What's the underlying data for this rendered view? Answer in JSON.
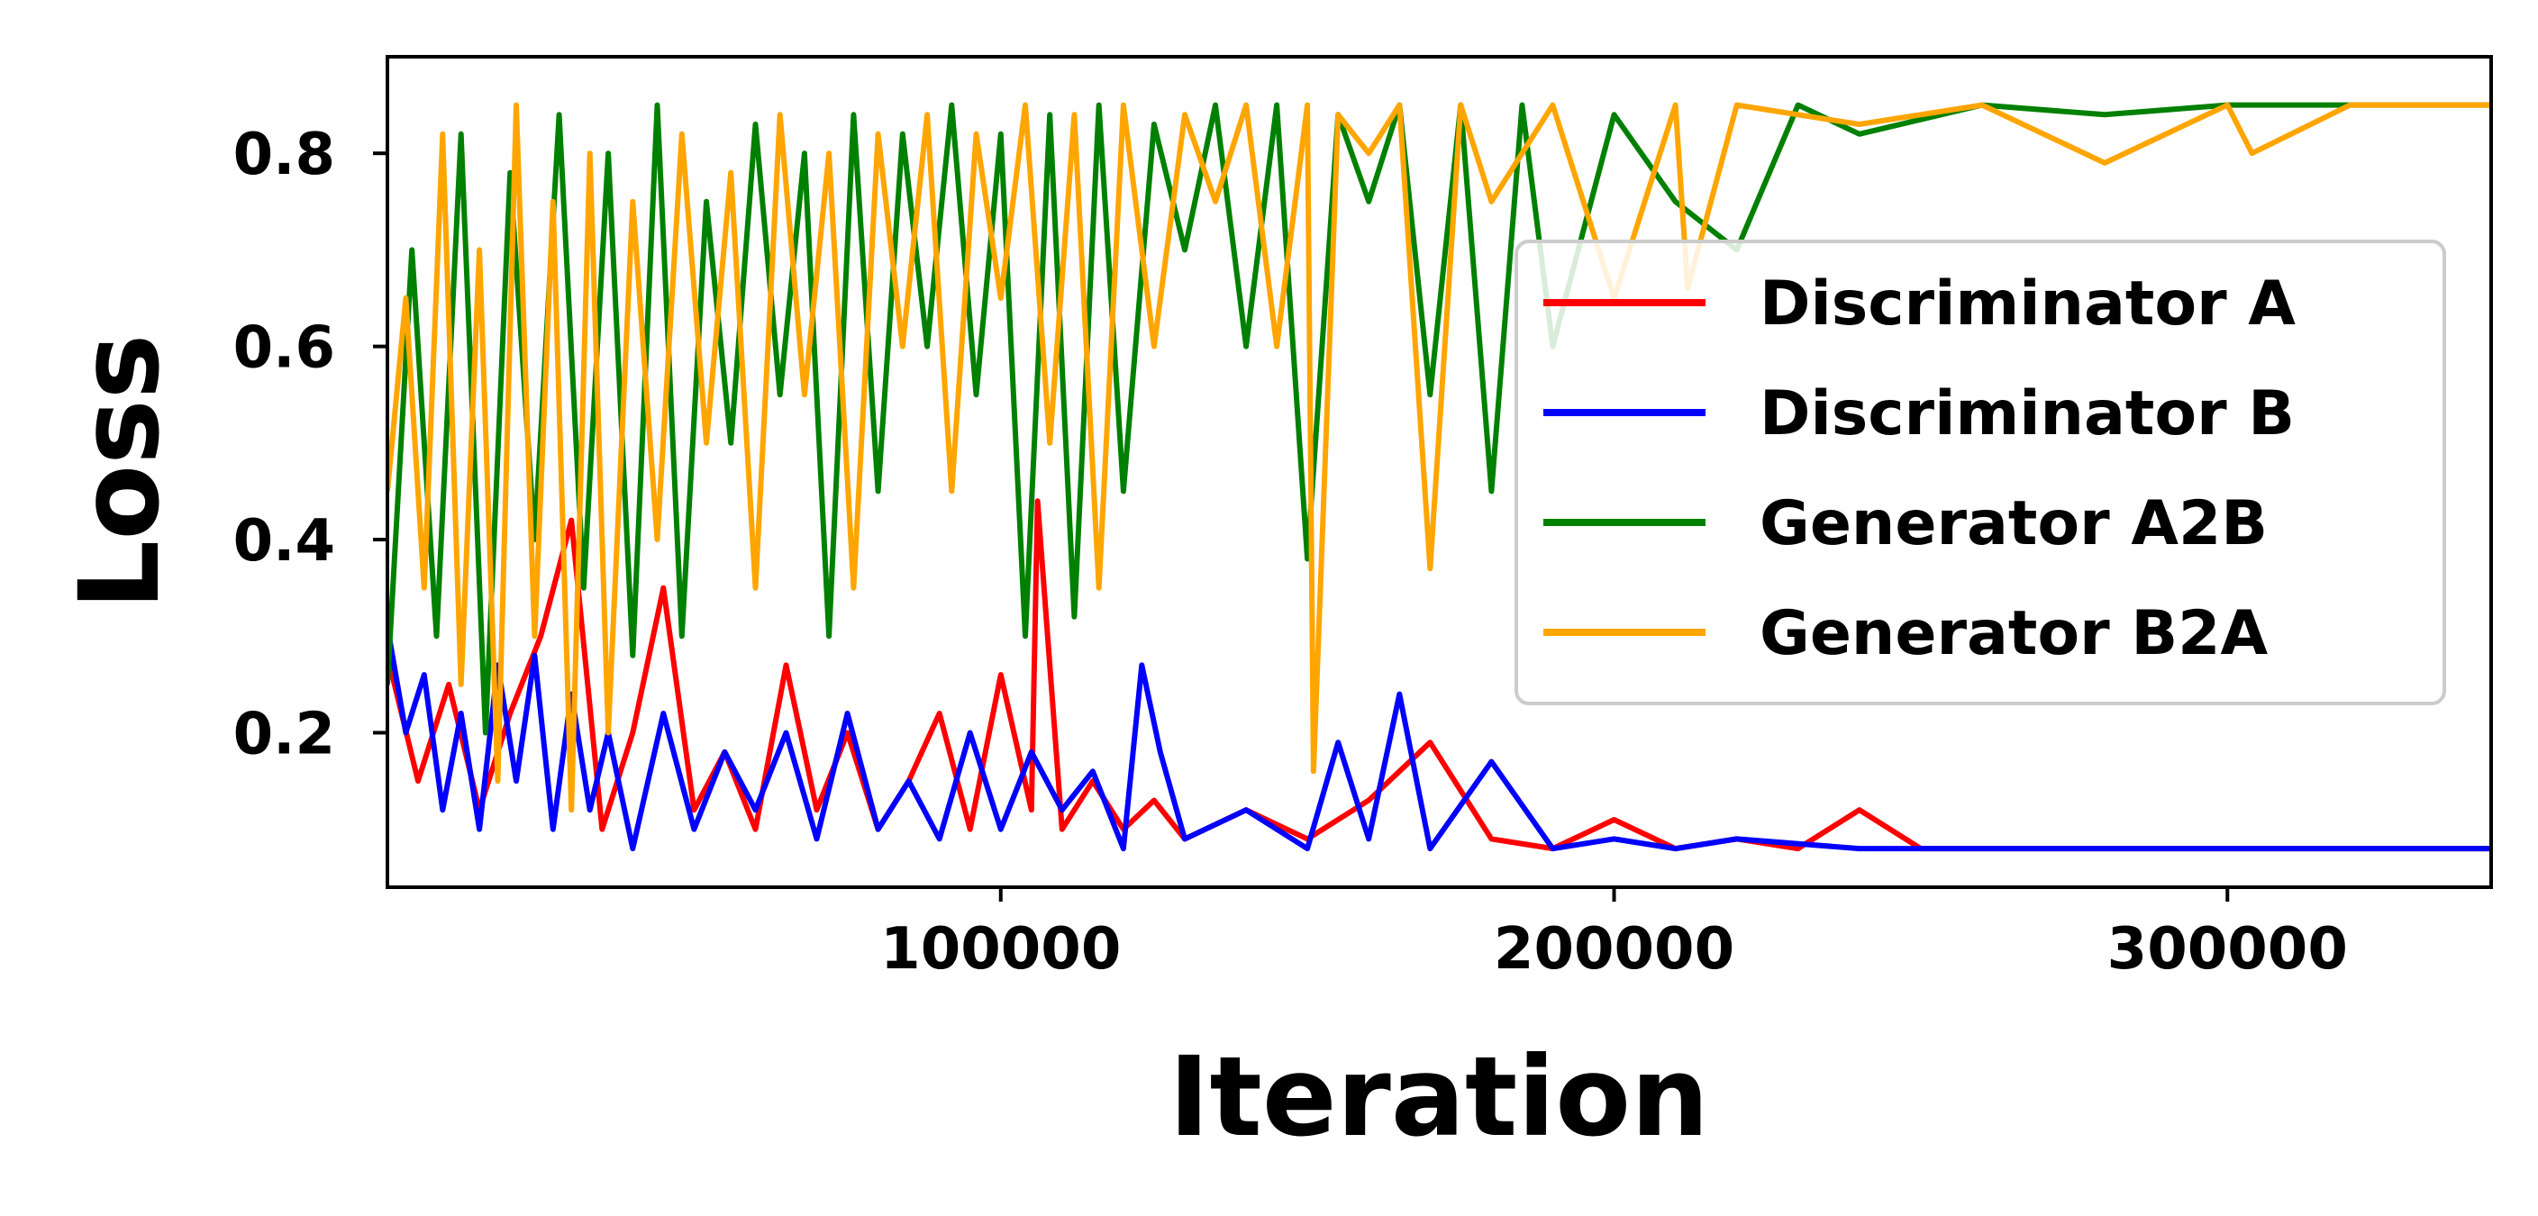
{
  "chart_data": {
    "type": "line",
    "xlabel": "Iteration",
    "ylabel": "Loss",
    "xlim": [
      0,
      343000
    ],
    "ylim": [
      0.04,
      0.9
    ],
    "xticks": [
      100000,
      200000,
      300000
    ],
    "xtick_labels": [
      "100000",
      "200000",
      "300000"
    ],
    "yticks": [
      0.2,
      0.4,
      0.6,
      0.8
    ],
    "ytick_labels": [
      "0.2",
      "0.4",
      "0.6",
      "0.8"
    ],
    "grid": false,
    "legend_position": "center-right",
    "series": [
      {
        "name": "Discriminator A",
        "color": "#ff0000",
        "x": [
          0,
          5000,
          10000,
          15000,
          20000,
          25000,
          30000,
          35000,
          40000,
          45000,
          50000,
          55000,
          60000,
          65000,
          70000,
          75000,
          80000,
          85000,
          90000,
          95000,
          100000,
          105000,
          106000,
          110000,
          115000,
          120000,
          125000,
          130000,
          140000,
          150000,
          160000,
          170000,
          180000,
          190000,
          200000,
          210000,
          220000,
          230000,
          240000,
          250000,
          260000,
          280000,
          300000,
          320000,
          343000
        ],
        "values": [
          0.28,
          0.15,
          0.25,
          0.12,
          0.22,
          0.3,
          0.42,
          0.1,
          0.2,
          0.35,
          0.12,
          0.18,
          0.1,
          0.27,
          0.12,
          0.2,
          0.1,
          0.15,
          0.22,
          0.1,
          0.26,
          0.12,
          0.44,
          0.1,
          0.15,
          0.1,
          0.13,
          0.09,
          0.12,
          0.09,
          0.13,
          0.19,
          0.09,
          0.08,
          0.11,
          0.08,
          0.09,
          0.08,
          0.12,
          0.08,
          0.08,
          0.08,
          0.08,
          0.08,
          0.08
        ]
      },
      {
        "name": "Discriminator B",
        "color": "#0000ff",
        "x": [
          0,
          3000,
          6000,
          9000,
          12000,
          15000,
          18000,
          21000,
          24000,
          27000,
          30000,
          33000,
          36000,
          40000,
          45000,
          50000,
          55000,
          60000,
          65000,
          70000,
          75000,
          80000,
          85000,
          90000,
          95000,
          100000,
          105000,
          110000,
          115000,
          120000,
          123000,
          126000,
          130000,
          140000,
          150000,
          155000,
          160000,
          165000,
          170000,
          180000,
          190000,
          200000,
          210000,
          220000,
          240000,
          260000,
          280000,
          300000,
          320000,
          343000
        ],
        "values": [
          0.31,
          0.2,
          0.26,
          0.12,
          0.22,
          0.1,
          0.27,
          0.15,
          0.28,
          0.1,
          0.24,
          0.12,
          0.2,
          0.08,
          0.22,
          0.1,
          0.18,
          0.12,
          0.2,
          0.09,
          0.22,
          0.1,
          0.15,
          0.09,
          0.2,
          0.1,
          0.18,
          0.12,
          0.16,
          0.08,
          0.27,
          0.18,
          0.09,
          0.12,
          0.08,
          0.19,
          0.09,
          0.24,
          0.08,
          0.17,
          0.08,
          0.09,
          0.08,
          0.09,
          0.08,
          0.08,
          0.08,
          0.08,
          0.08,
          0.08
        ]
      },
      {
        "name": "Generator A2B",
        "color": "#008000",
        "x": [
          0,
          4000,
          8000,
          12000,
          16000,
          20000,
          24000,
          28000,
          32000,
          36000,
          40000,
          44000,
          48000,
          52000,
          56000,
          60000,
          64000,
          68000,
          72000,
          76000,
          80000,
          84000,
          88000,
          92000,
          96000,
          100000,
          104000,
          108000,
          112000,
          116000,
          120000,
          125000,
          130000,
          135000,
          140000,
          145000,
          150000,
          155000,
          160000,
          165000,
          170000,
          175000,
          180000,
          185000,
          190000,
          200000,
          210000,
          220000,
          230000,
          240000,
          260000,
          280000,
          300000,
          320000,
          343000
        ],
        "values": [
          0.25,
          0.7,
          0.3,
          0.82,
          0.2,
          0.78,
          0.4,
          0.84,
          0.35,
          0.8,
          0.28,
          0.85,
          0.3,
          0.75,
          0.5,
          0.83,
          0.55,
          0.8,
          0.3,
          0.84,
          0.45,
          0.82,
          0.6,
          0.85,
          0.55,
          0.82,
          0.3,
          0.84,
          0.32,
          0.85,
          0.45,
          0.83,
          0.7,
          0.85,
          0.6,
          0.85,
          0.38,
          0.84,
          0.75,
          0.85,
          0.55,
          0.85,
          0.45,
          0.85,
          0.6,
          0.84,
          0.75,
          0.7,
          0.85,
          0.82,
          0.85,
          0.84,
          0.85,
          0.85,
          0.85
        ]
      },
      {
        "name": "Generator B2A",
        "color": "#ffa500",
        "x": [
          0,
          3000,
          6000,
          9000,
          12000,
          15000,
          18000,
          21000,
          24000,
          27000,
          30000,
          33000,
          36000,
          40000,
          44000,
          48000,
          52000,
          56000,
          60000,
          64000,
          68000,
          72000,
          76000,
          80000,
          84000,
          88000,
          92000,
          96000,
          100000,
          104000,
          108000,
          112000,
          116000,
          120000,
          125000,
          130000,
          135000,
          140000,
          145000,
          150000,
          151000,
          155000,
          160000,
          165000,
          170000,
          175000,
          180000,
          190000,
          200000,
          210000,
          212000,
          220000,
          240000,
          260000,
          280000,
          300000,
          304000,
          320000,
          343000
        ],
        "values": [
          0.45,
          0.65,
          0.35,
          0.82,
          0.25,
          0.7,
          0.15,
          0.85,
          0.3,
          0.75,
          0.12,
          0.8,
          0.2,
          0.75,
          0.4,
          0.82,
          0.5,
          0.78,
          0.35,
          0.84,
          0.55,
          0.8,
          0.35,
          0.82,
          0.6,
          0.84,
          0.45,
          0.82,
          0.65,
          0.85,
          0.5,
          0.84,
          0.35,
          0.85,
          0.6,
          0.84,
          0.75,
          0.85,
          0.6,
          0.85,
          0.16,
          0.84,
          0.8,
          0.85,
          0.37,
          0.85,
          0.75,
          0.85,
          0.65,
          0.85,
          0.66,
          0.85,
          0.83,
          0.85,
          0.79,
          0.85,
          0.8,
          0.85,
          0.85
        ]
      }
    ]
  }
}
